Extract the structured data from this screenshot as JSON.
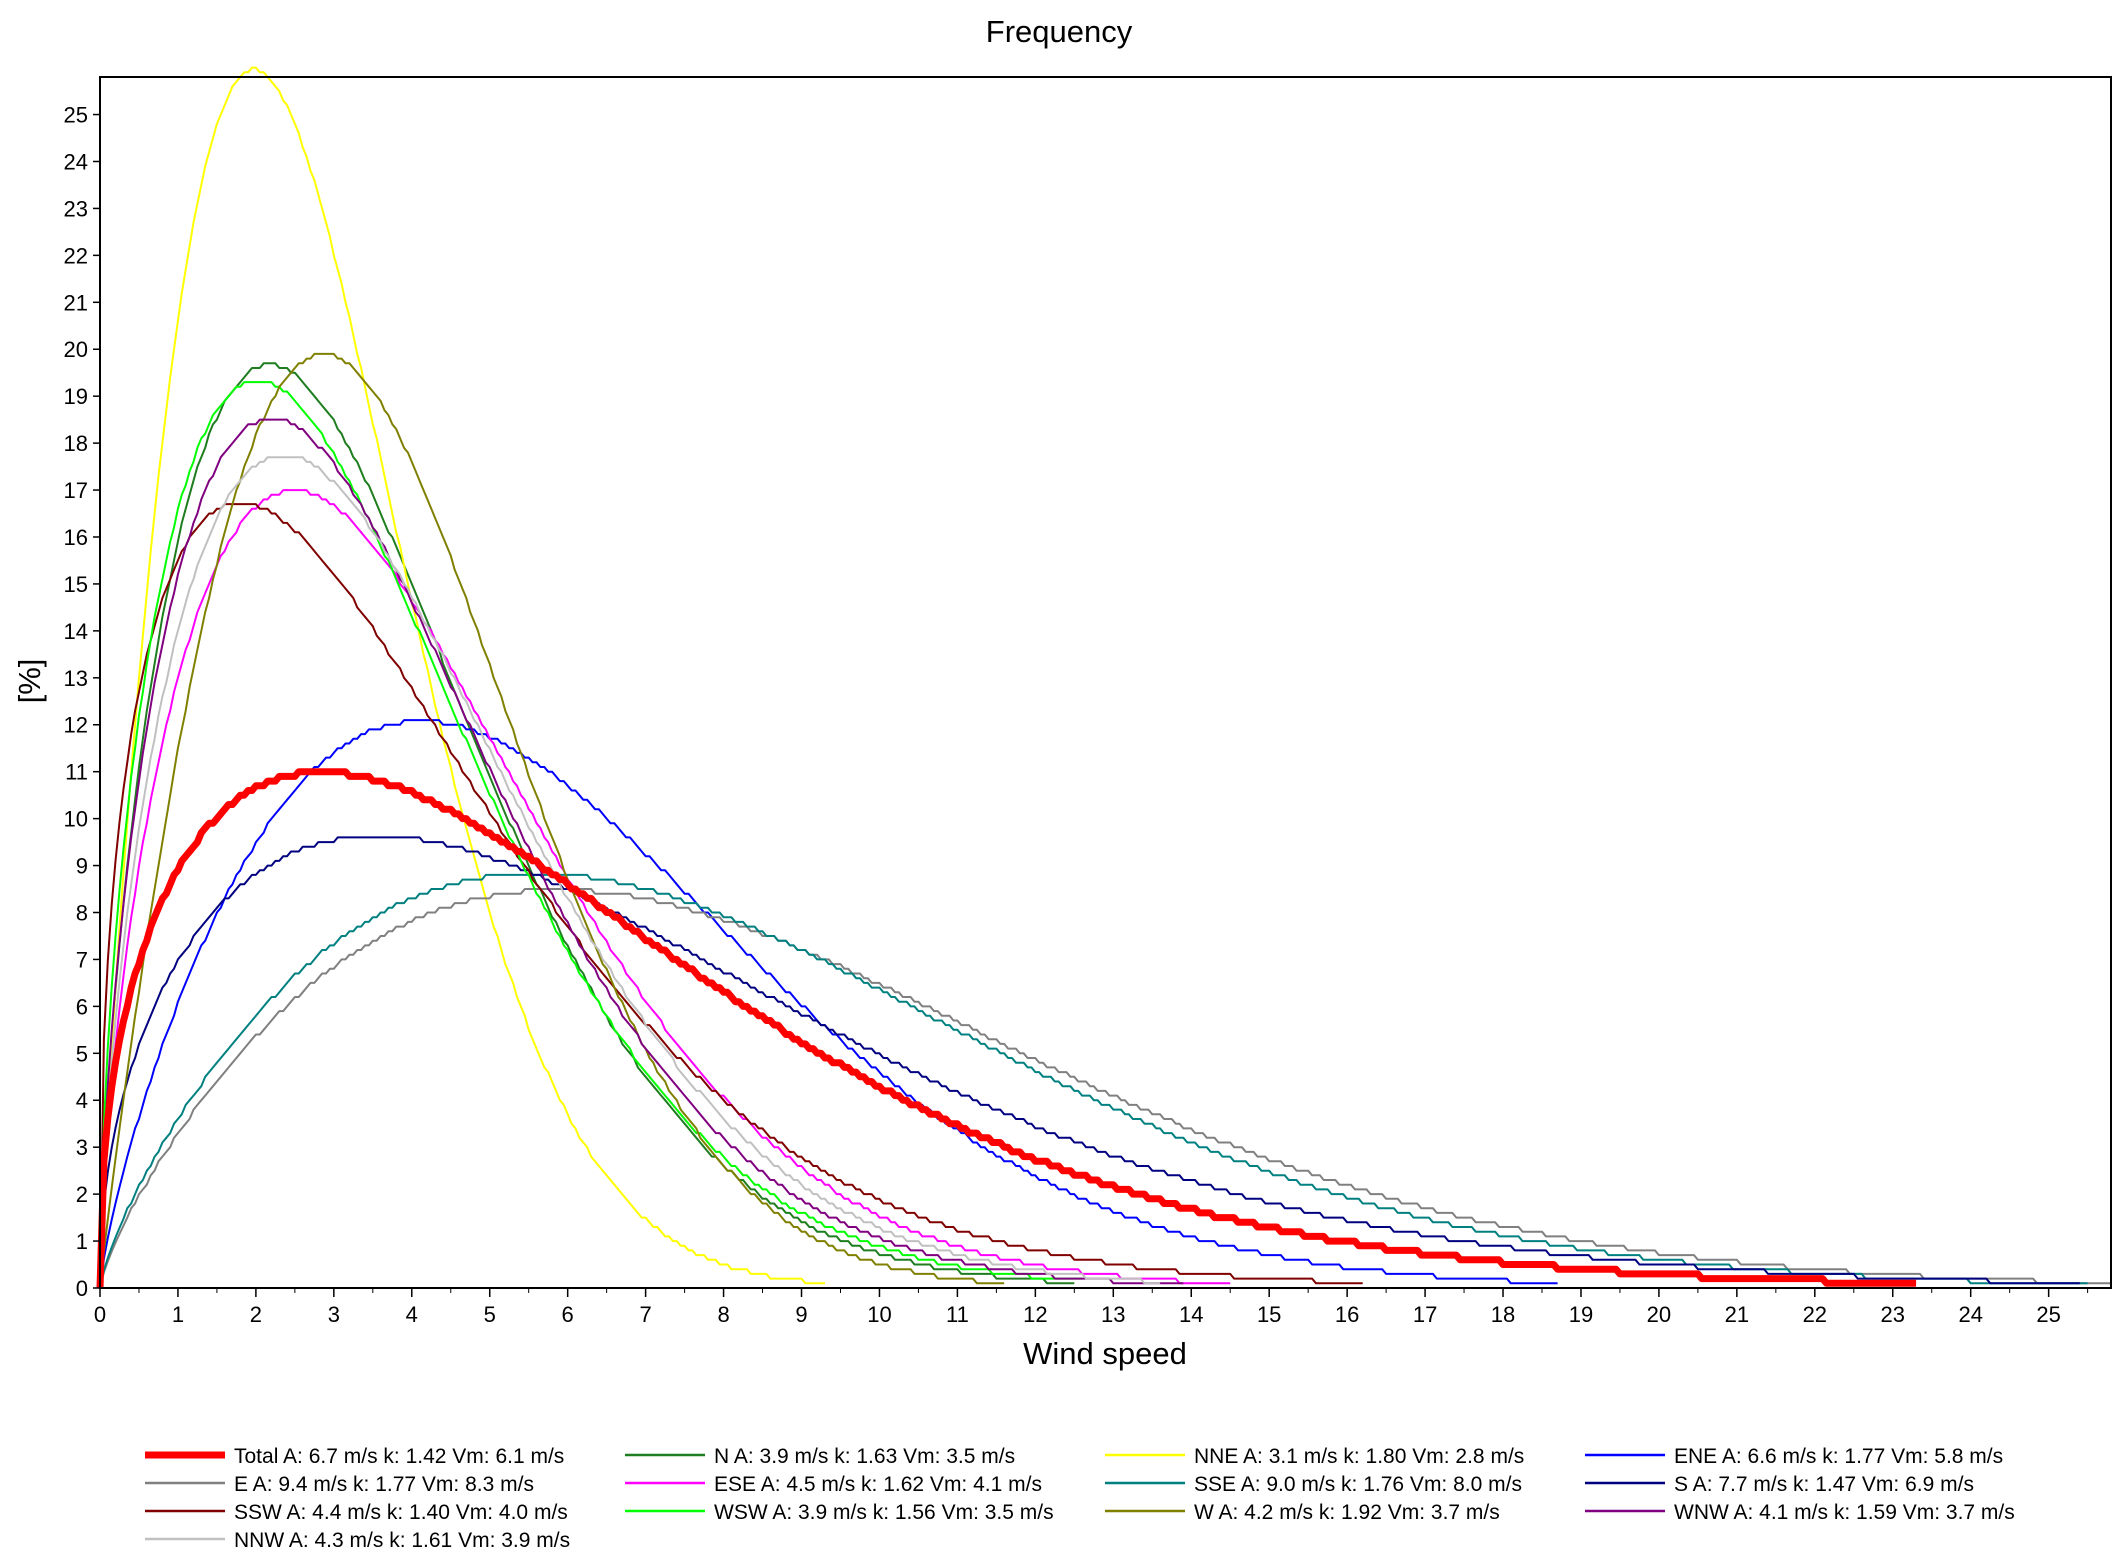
{
  "chart_data": {
    "type": "line",
    "title": "Frequency",
    "xlabel": "Wind speed",
    "ylabel": "[%]",
    "xlim": [
      0,
      25.8
    ],
    "ylim": [
      0,
      25.8
    ],
    "x_ticks": [
      0,
      1,
      2,
      3,
      4,
      5,
      6,
      7,
      8,
      9,
      10,
      11,
      12,
      13,
      14,
      15,
      16,
      17,
      18,
      19,
      20,
      21,
      22,
      23,
      24,
      25
    ],
    "y_ticks": [
      0,
      1,
      2,
      3,
      4,
      5,
      6,
      7,
      8,
      9,
      10,
      11,
      12,
      13,
      14,
      15,
      16,
      17,
      18,
      19,
      20,
      21,
      22,
      23,
      24,
      25
    ],
    "grid": false,
    "legend_position": "bottom",
    "series": [
      {
        "name": "Total",
        "label": "Total A: 6.7 m/s k: 1.42 Vm: 6.1 m/s",
        "color": "#ff0000",
        "A": 6.7,
        "k": 1.42,
        "x_end": 23.3
      },
      {
        "name": "N",
        "label": "N A: 3.9 m/s k: 1.63 Vm: 3.5 m/s",
        "color": "#1e7d1e",
        "A": 3.9,
        "k": 1.63,
        "x_end": 12.5
      },
      {
        "name": "NNE",
        "label": "NNE A: 3.1 m/s k: 1.80 Vm: 2.8 m/s",
        "color": "#ffff00",
        "A": 3.1,
        "k": 1.8,
        "x_end": 9.3
      },
      {
        "name": "ENE",
        "label": "ENE A: 6.6 m/s k: 1.77 Vm: 5.8 m/s",
        "color": "#0000ff",
        "A": 6.6,
        "k": 1.77,
        "x_end": 18.7
      },
      {
        "name": "E",
        "label": "E A: 9.4 m/s k: 1.77 Vm: 8.3 m/s",
        "color": "#808080",
        "A": 9.4,
        "k": 1.77,
        "x_end": 25.8
      },
      {
        "name": "ESE",
        "label": "ESE A: 4.5 m/s k: 1.62 Vm: 4.1 m/s",
        "color": "#ff00ff",
        "A": 4.5,
        "k": 1.62,
        "x_end": 14.5
      },
      {
        "name": "SSE",
        "label": "SSE A: 9.0 m/s k: 1.76 Vm: 8.0 m/s",
        "color": "#008080",
        "A": 9.0,
        "k": 1.76,
        "x_end": 25.5
      },
      {
        "name": "S",
        "label": "S A: 7.7 m/s k: 1.47 Vm: 6.9 m/s",
        "color": "#000080",
        "A": 7.7,
        "k": 1.47,
        "x_end": 25.4
      },
      {
        "name": "SSW",
        "label": "SSW A: 4.4 m/s k: 1.40 Vm: 4.0 m/s",
        "color": "#800000",
        "A": 4.4,
        "k": 1.4,
        "x_end": 16.2
      },
      {
        "name": "WSW",
        "label": "WSW A: 3.9 m/s k: 1.56 Vm: 3.5 m/s",
        "color": "#00ff00",
        "A": 3.9,
        "k": 1.56,
        "x_end": 12.6
      },
      {
        "name": "W",
        "label": "W A: 4.2 m/s k: 1.92 Vm: 3.7 m/s",
        "color": "#808000",
        "A": 4.2,
        "k": 1.92,
        "x_end": 11.6
      },
      {
        "name": "WNW",
        "label": "WNW A: 4.1 m/s k: 1.59 Vm: 3.7 m/s",
        "color": "#800080",
        "A": 4.1,
        "k": 1.59,
        "x_end": 13.9
      },
      {
        "name": "NNW",
        "label": "NNW A: 4.3 m/s k: 1.61 Vm: 3.9 m/s",
        "color": "#c0c0c0",
        "A": 4.3,
        "k": 1.61,
        "x_end": 13.6
      }
    ]
  }
}
